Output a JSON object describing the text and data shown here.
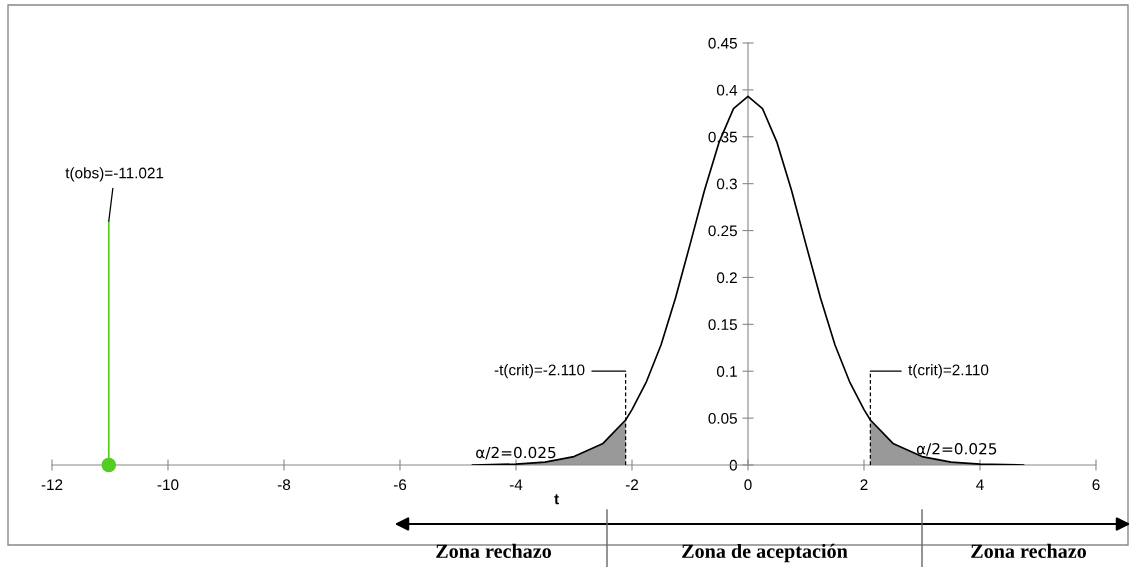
{
  "chart_data": {
    "type": "line",
    "xlabel": "t",
    "xlim": [
      -12,
      6
    ],
    "xticks": [
      -12,
      -10,
      -8,
      -6,
      -4,
      -2,
      0,
      2,
      4,
      6
    ],
    "ylim": [
      0,
      0.45
    ],
    "yticks": [
      0,
      0.05,
      0.1,
      0.15,
      0.2,
      0.25,
      0.3,
      0.35,
      0.4,
      0.45
    ],
    "grid": false,
    "legend": false,
    "series": [
      {
        "color": "#000000",
        "x": [
          -4.75,
          -4,
          -3.5,
          -3,
          -2.5,
          -2.11,
          -2,
          -1.75,
          -1.5,
          -1.25,
          -1,
          -0.75,
          -0.5,
          -0.25,
          0,
          0.25,
          0.5,
          0.75,
          1,
          1.25,
          1.5,
          1.75,
          2,
          2.11,
          2.5,
          3,
          3.5,
          4,
          4.75
        ],
        "values": [
          0,
          0.001,
          0.003,
          0.009,
          0.023,
          0.048,
          0.059,
          0.089,
          0.128,
          0.178,
          0.235,
          0.293,
          0.344,
          0.38,
          0.393,
          0.38,
          0.344,
          0.293,
          0.235,
          0.178,
          0.128,
          0.089,
          0.059,
          0.048,
          0.023,
          0.009,
          0.003,
          0.001,
          0
        ]
      },
      {
        "type": "area",
        "color": "#999999",
        "x": [
          -4.75,
          -4,
          -3.5,
          -3,
          -2.5,
          -2.11
        ],
        "values": [
          0,
          0.001,
          0.003,
          0.009,
          0.023,
          0.048
        ]
      },
      {
        "type": "area",
        "color": "#999999",
        "x": [
          2.11,
          2.5,
          3,
          3.5,
          4,
          4.75
        ],
        "values": [
          0.048,
          0.023,
          0.009,
          0.003,
          0.001,
          0
        ]
      },
      {
        "color": "#000000",
        "line_style": "dashed",
        "x": [
          -2.11,
          -2.11
        ],
        "values": [
          0,
          0.1
        ]
      },
      {
        "color": "#000000",
        "line_style": "dashed",
        "x": [
          2.11,
          2.11
        ],
        "values": [
          0,
          0.1
        ]
      },
      {
        "color": "#55cc22",
        "x": [
          -11.021,
          -11.021
        ],
        "values": [
          0,
          0.26
        ]
      },
      {
        "type": "scatter",
        "color": "#55cc22",
        "marker": "circle",
        "x": [
          -11.021
        ],
        "values": [
          0
        ]
      }
    ],
    "annotations": [
      {
        "text": "-t(crit)=-2.110",
        "x": -2.11,
        "y": 0.1
      },
      {
        "text": "t(crit)=2.110",
        "x": 2.11,
        "y": 0.1
      },
      {
        "text": "t(obs)=-11.021",
        "x": -11.021,
        "y": 0.26
      },
      "α/2=0.025",
      "α/2=0.025",
      "Zona rechazo",
      "Zona de aceptación",
      "Zona rechazo"
    ]
  }
}
